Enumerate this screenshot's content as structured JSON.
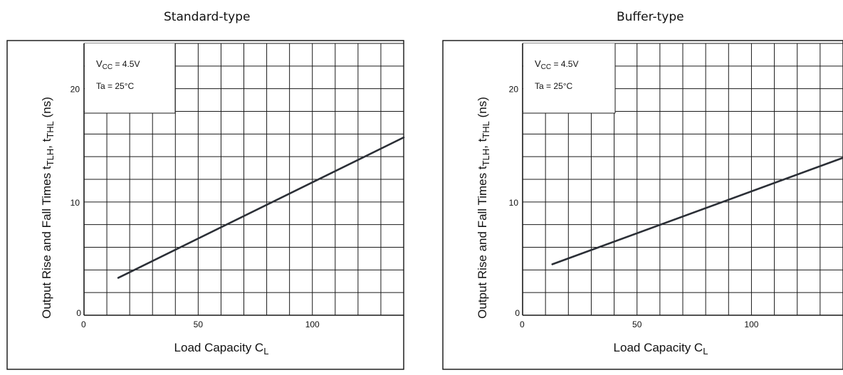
{
  "chart_data": [
    {
      "type": "line",
      "title": "Standard-type",
      "xlabel": "Load Capacity C",
      "xlabel_sub": "L",
      "ylabel": "Output Rise and Fall Times t",
      "ylabel_sub1": "TLH",
      "ylabel_mid": ", t",
      "ylabel_sub2": "THL",
      "ylabel_tail": " (ns)",
      "xlim": [
        0,
        140
      ],
      "ylim": [
        0,
        24
      ],
      "x_ticks": [
        0,
        50,
        100
      ],
      "y_ticks": [
        0,
        10,
        20
      ],
      "grid": true,
      "annotation": {
        "line1_main": "V",
        "line1_sub": "CC",
        "line1_rest": " = 4.5V",
        "line2": "Ta = 25°C"
      },
      "series": [
        {
          "x": [
            15,
            140
          ],
          "y": [
            3.3,
            15.7
          ],
          "color": "#2b2f36"
        }
      ]
    },
    {
      "type": "line",
      "title": "Buffer-type",
      "xlabel": "Load Capacity C",
      "xlabel_sub": "L",
      "ylabel": "Output Rise and Fall Times t",
      "ylabel_sub1": "TLH",
      "ylabel_mid": ", t",
      "ylabel_sub2": "THL",
      "ylabel_tail": " (ns)",
      "xlim": [
        0,
        140
      ],
      "ylim": [
        0,
        24
      ],
      "x_ticks": [
        0,
        50,
        100
      ],
      "y_ticks": [
        0,
        10,
        20
      ],
      "grid": true,
      "annotation": {
        "line1_main": "V",
        "line1_sub": "CC",
        "line1_rest": " = 4.5V",
        "line2": "Ta = 25°C"
      },
      "series": [
        {
          "x": [
            13,
            140
          ],
          "y": [
            4.5,
            13.9
          ],
          "color": "#2b2f36"
        }
      ]
    }
  ]
}
